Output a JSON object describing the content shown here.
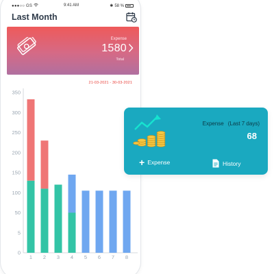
{
  "status_bar": {
    "carrier": "●●●○○ GS",
    "wifi_icon": "wifi-icon",
    "time": "9:41 AM",
    "battery": "58 %"
  },
  "header": {
    "title": "Last Month",
    "calendar_icon": "calendar-clock-icon"
  },
  "expense_card": {
    "label": "Expense",
    "value": "1580",
    "total_label": "Total",
    "icon": "money-bills-icon",
    "gradient_top": "#ef5a5a",
    "gradient_bottom": "#b070a0"
  },
  "date_range": "21-03-2021 - 30-03-2021",
  "chart_data": {
    "type": "bar",
    "stacked": true,
    "categories": [
      "1",
      "2",
      "3",
      "4",
      "5",
      "6",
      "7",
      "8"
    ],
    "y_ticks": [
      "0",
      "5",
      "50",
      "100",
      "150",
      "200",
      "250",
      "300",
      "350"
    ],
    "series": [
      {
        "values": [
          130,
          110,
          120,
          50,
          0,
          0,
          0,
          0
        ],
        "color": "#33c4a6"
      },
      {
        "values": [
          0,
          0,
          0,
          95,
          105,
          105,
          105,
          105
        ],
        "color": "#6fa7f0"
      },
      {
        "values": [
          203,
          120,
          0,
          0,
          0,
          0,
          0,
          0
        ],
        "color": "#ef7676"
      }
    ],
    "grid": false
  },
  "summary_card": {
    "title": "Expense",
    "subtitle": "(Last 7 days)",
    "value": "68",
    "add_label": "Expense",
    "history_label": "History",
    "icon": "coins-growth-icon",
    "color": "#1aa9c0"
  }
}
